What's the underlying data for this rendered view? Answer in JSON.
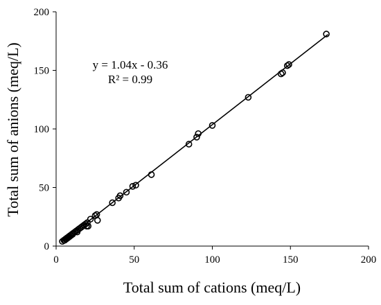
{
  "chart_data": {
    "type": "scatter",
    "title": "",
    "xlabel": "Total sum of cations (meq/L)",
    "ylabel": "Total sum of anions (meq/L)",
    "xlim": [
      0,
      200
    ],
    "ylim": [
      0,
      200
    ],
    "xticks": [
      "0",
      "50",
      "100",
      "150",
      "200"
    ],
    "yticks": [
      "0",
      "50",
      "100",
      "150",
      "200"
    ],
    "grid": false,
    "legend": "none",
    "marker": "open-circle",
    "annotations": {
      "equation": "y = 1.04x - 0.36",
      "r_squared": "R² = 0.99"
    },
    "trendline": {
      "slope": 1.04,
      "intercept": -0.36,
      "x_range": [
        4,
        174
      ]
    },
    "series": [
      {
        "points": [
          [
            4,
            4
          ],
          [
            5,
            5
          ],
          [
            5.5,
            5
          ],
          [
            6,
            6
          ],
          [
            6.5,
            6
          ],
          [
            7,
            7
          ],
          [
            7.5,
            7
          ],
          [
            8,
            8
          ],
          [
            8.5,
            8
          ],
          [
            9,
            9
          ],
          [
            9.5,
            9
          ],
          [
            10,
            10
          ],
          [
            10.5,
            10
          ],
          [
            11,
            11
          ],
          [
            12,
            12
          ],
          [
            13,
            13
          ],
          [
            13.5,
            12
          ],
          [
            14,
            14
          ],
          [
            15,
            15
          ],
          [
            16,
            16
          ],
          [
            17,
            17
          ],
          [
            18,
            18
          ],
          [
            19,
            19
          ],
          [
            19.5,
            17
          ],
          [
            20,
            20
          ],
          [
            20.5,
            17
          ],
          [
            22,
            23
          ],
          [
            25,
            26
          ],
          [
            26,
            27
          ],
          [
            26.5,
            22
          ],
          [
            36,
            37
          ],
          [
            40,
            41
          ],
          [
            41,
            43
          ],
          [
            45,
            46
          ],
          [
            49,
            51
          ],
          [
            51,
            52
          ],
          [
            61,
            61
          ],
          [
            85,
            87
          ],
          [
            90,
            93
          ],
          [
            91,
            96
          ],
          [
            100,
            103
          ],
          [
            123,
            127
          ],
          [
            144,
            147
          ],
          [
            145,
            148
          ],
          [
            148,
            154
          ],
          [
            149,
            155
          ],
          [
            173,
            181
          ]
        ]
      }
    ],
    "colors": {
      "marker": "#000000",
      "line": "#000000",
      "axis": "#000000"
    }
  }
}
